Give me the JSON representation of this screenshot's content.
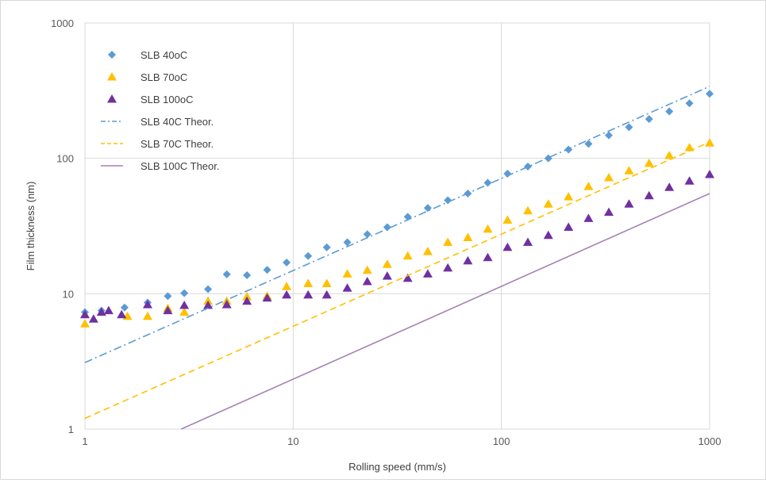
{
  "chart_data": {
    "type": "scatter",
    "x_scale": "log",
    "y_scale": "log",
    "xlabel": "Rolling speed (mm/s)",
    "ylabel": "Film thickness (nm)",
    "xlim": [
      1,
      1000
    ],
    "ylim": [
      1,
      1000
    ],
    "x_ticks": [
      "1",
      "10",
      "100",
      "1000"
    ],
    "y_ticks": [
      "1",
      "10",
      "100",
      "1000"
    ],
    "grid": true,
    "legend_position": "top-left",
    "series": [
      {
        "name": "SLB 40oC",
        "kind": "marker",
        "marker": "diamond",
        "color": "#5B9BD5",
        "x": [
          1,
          1.2,
          1.55,
          2,
          2.5,
          3,
          3.9,
          4.8,
          6,
          7.5,
          9.3,
          11.8,
          14.5,
          18.2,
          22.7,
          28.3,
          35.5,
          44.3,
          55.3,
          69,
          86,
          107,
          134,
          168,
          210,
          262,
          328,
          410,
          512,
          640,
          800,
          1000
        ],
        "y": [
          7.3,
          7.5,
          7.9,
          8.6,
          9.6,
          10.1,
          10.8,
          13.9,
          13.7,
          15,
          17,
          19,
          22,
          24,
          27.5,
          31,
          37,
          43,
          49,
          55,
          66,
          77,
          87,
          100,
          116,
          128,
          148,
          170,
          195,
          222,
          255,
          300
        ]
      },
      {
        "name": "SLB 70oC",
        "kind": "marker",
        "marker": "triangle",
        "color": "#FFC000",
        "x": [
          1,
          1.6,
          2,
          2.5,
          3,
          3.9,
          4.8,
          6,
          7.5,
          9.3,
          11.8,
          14.5,
          18.2,
          22.7,
          28.3,
          35.5,
          44.3,
          55.3,
          69,
          86,
          107,
          134,
          168,
          210,
          262,
          328,
          410,
          512,
          640,
          800,
          1000
        ],
        "y": [
          6,
          6.8,
          6.8,
          7.8,
          7.3,
          8.8,
          8.8,
          9.5,
          9.6,
          11.3,
          11.9,
          11.9,
          14,
          14.9,
          16.5,
          19,
          20.5,
          24,
          26,
          30,
          35,
          41,
          46,
          52,
          62,
          72,
          81,
          92,
          105,
          120,
          130
        ]
      },
      {
        "name": "SLB 100oC",
        "kind": "marker",
        "marker": "triangle",
        "color": "#7030A0",
        "x": [
          1,
          1.1,
          1.2,
          1.3,
          1.5,
          2,
          2.5,
          3,
          3.9,
          4.8,
          6,
          7.5,
          9.3,
          11.8,
          14.5,
          18.2,
          22.7,
          28.3,
          35.5,
          44.3,
          55.3,
          69,
          86,
          107,
          134,
          168,
          210,
          262,
          328,
          410,
          512,
          640,
          800,
          1000
        ],
        "y": [
          7,
          6.5,
          7.3,
          7.5,
          7,
          8.3,
          7.5,
          8.2,
          8.2,
          8.3,
          8.8,
          9.3,
          9.8,
          9.8,
          9.8,
          11,
          12.3,
          13.5,
          13,
          14,
          15.5,
          17.5,
          18.5,
          22,
          24,
          27,
          31,
          36,
          40,
          46,
          53,
          61,
          68,
          76
        ]
      },
      {
        "name": "SLB 40C Theor.",
        "kind": "line",
        "dash": "dash-dot",
        "color": "#5B9BD5",
        "x": [
          1,
          1000
        ],
        "y": [
          3.1,
          340
        ]
      },
      {
        "name": "SLB 70C Theor.",
        "kind": "line",
        "dash": "dash",
        "color": "#FFC000",
        "x": [
          1,
          1000
        ],
        "y": [
          1.2,
          132
        ]
      },
      {
        "name": "SLB 100C Theor.",
        "kind": "line",
        "dash": "solid",
        "color": "#A682B4",
        "x": [
          2.9,
          1000
        ],
        "y": [
          1,
          55
        ]
      }
    ]
  }
}
